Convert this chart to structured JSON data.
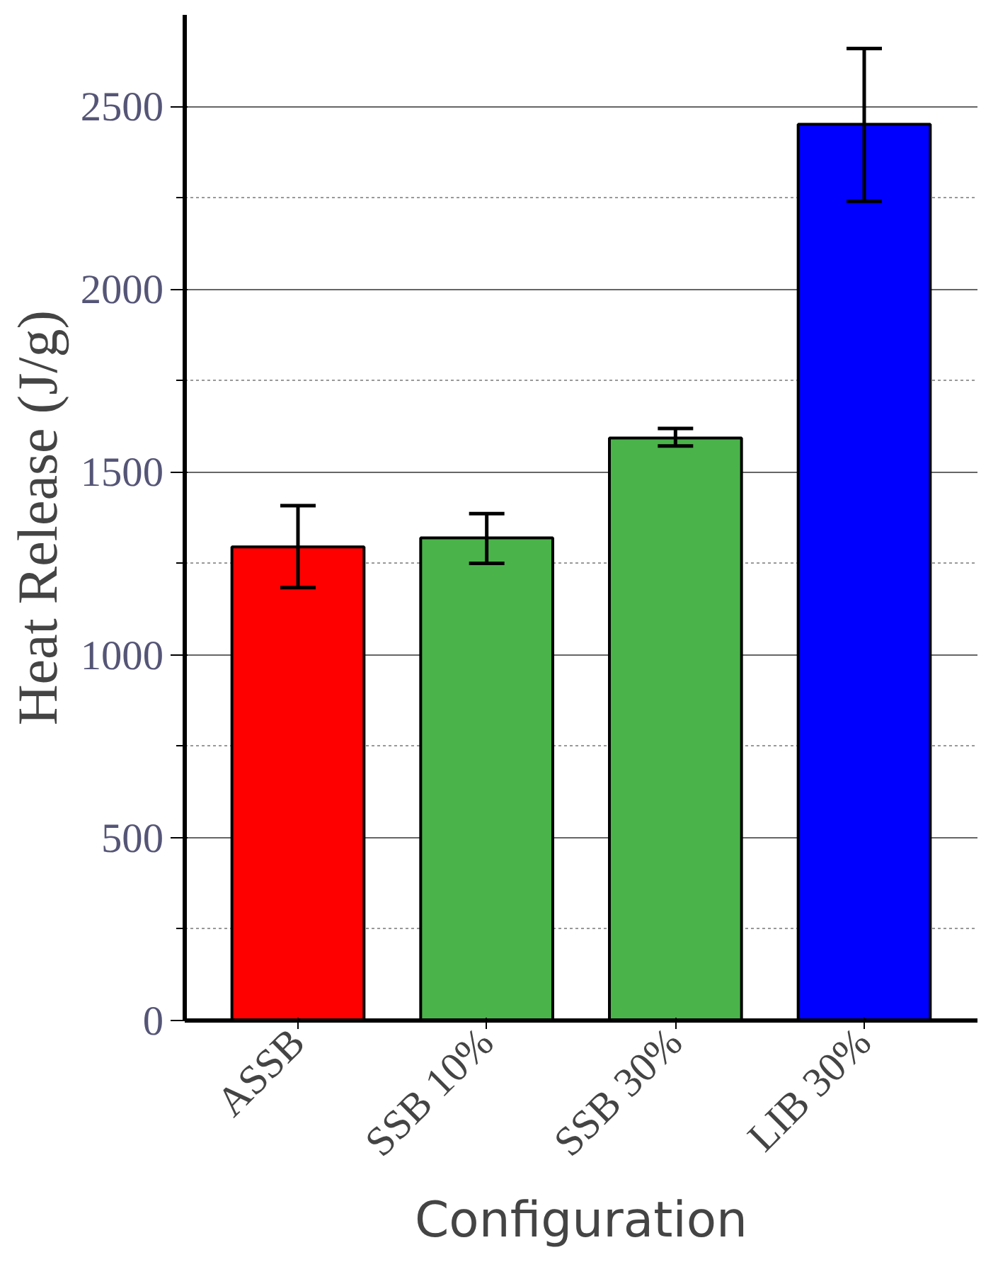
{
  "chart_data": {
    "type": "bar",
    "xlabel": "Configuration",
    "ylabel": "Heat Release (J/g)",
    "categories": [
      "ASSB",
      "SSB 10%",
      "SSB 30%",
      "LIB 30%"
    ],
    "values": [
      1295,
      1320,
      1593,
      2451
    ],
    "colors": [
      "#ff0000",
      "#4ab34a",
      "#4ab34a",
      "#0000ff"
    ],
    "errors": [
      [
        1184,
        1408
      ],
      [
        1250,
        1386
      ],
      [
        1571,
        1619
      ],
      [
        2240,
        2658
      ]
    ],
    "ylim": [
      0,
      2750
    ],
    "yticks": [
      0,
      {
        "value": 250,
        "label": null
      },
      500,
      {
        "value": 750,
        "label": null
      },
      1000,
      {
        "value": 1250,
        "label": null
      },
      1500,
      {
        "value": 1750,
        "label": null
      },
      2000,
      {
        "value": 2250,
        "label": null
      },
      2500
    ],
    "grid": "y"
  }
}
